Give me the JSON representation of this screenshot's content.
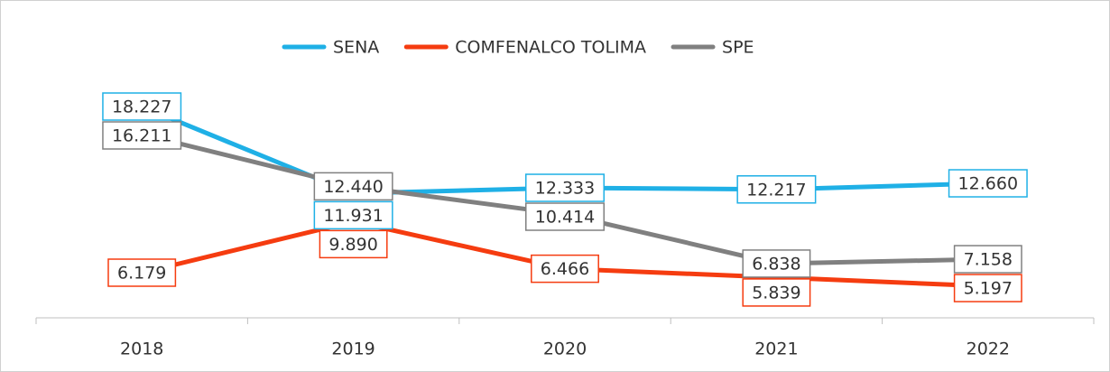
{
  "chart_data": {
    "type": "line",
    "categories": [
      "2018",
      "2019",
      "2020",
      "2021",
      "2022"
    ],
    "series": [
      {
        "name": "SENA",
        "color": "#1fb0e6",
        "values": [
          18227,
          11931,
          12333,
          12217,
          12660
        ],
        "value_labels": [
          "18.227",
          "11.931",
          "12.333",
          "12.217",
          "12.660"
        ]
      },
      {
        "name": "COMFENALCO TOLIMA",
        "color": "#f53c10",
        "values": [
          6179,
          9890,
          6466,
          5839,
          5197
        ],
        "value_labels": [
          "6.179",
          "9.890",
          "6.466",
          "5.839",
          "5.197"
        ]
      },
      {
        "name": "SPE",
        "color": "#808080",
        "values": [
          16211,
          12440,
          10414,
          6838,
          7158
        ],
        "value_labels": [
          "16.211",
          "12.440",
          "10.414",
          "6.838",
          "7.158"
        ]
      }
    ]
  }
}
